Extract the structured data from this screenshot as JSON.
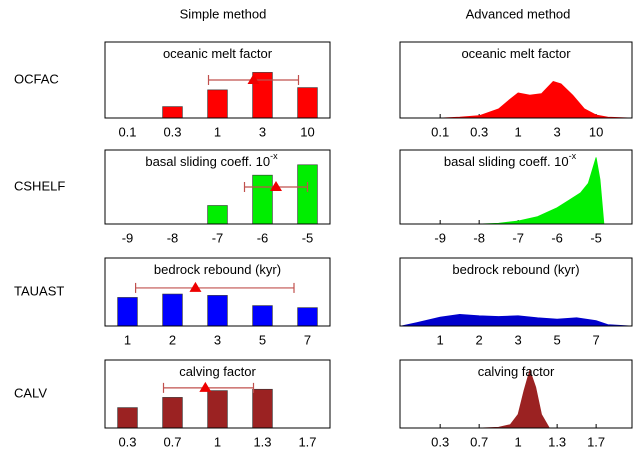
{
  "column_titles": [
    "Simple method",
    "Advanced method"
  ],
  "row_labels": [
    "OCFAC",
    "CSHELF",
    "TAUAST",
    "CALV"
  ],
  "chart_data": [
    {
      "type": "bar",
      "title": "oceanic melt factor",
      "categories": [
        "0.1",
        "0.3",
        "1",
        "3",
        "10"
      ],
      "values": [
        0,
        0.15,
        0.37,
        0.6,
        0.4
      ],
      "color": "#ff0000",
      "ylim": [
        0,
        1
      ],
      "errorbar": {
        "x": 2.8,
        "low": 1.8,
        "high": 3.8,
        "y": 0.5
      }
    },
    {
      "type": "area",
      "title": "oceanic melt factor",
      "xlim": [
        -1.03,
        4.92
      ],
      "ylim": [
        0,
        1
      ],
      "color": "#ff0000",
      "xticks": [
        {
          "value": 0,
          "label": "0.1"
        },
        {
          "value": 1,
          "label": "0.3"
        },
        {
          "value": 2,
          "label": "1"
        },
        {
          "value": 3,
          "label": "3"
        },
        {
          "value": 4,
          "label": "10"
        }
      ],
      "x": [
        -1,
        0,
        0.5,
        1,
        1.5,
        1.8,
        2,
        2.3,
        2.6,
        2.9,
        3.1,
        3.4,
        3.7,
        4,
        4.3,
        4.9
      ],
      "values": [
        0,
        0,
        0.01,
        0.03,
        0.12,
        0.25,
        0.33,
        0.3,
        0.32,
        0.48,
        0.45,
        0.3,
        0.12,
        0.04,
        0.01,
        0
      ]
    },
    {
      "type": "bar",
      "title": "basal sliding coeff. 10",
      "title_sup": "-x",
      "categories": [
        "-9",
        "-8",
        "-7",
        "-6",
        "-5"
      ],
      "values": [
        0,
        0,
        0.25,
        0.66,
        0.8
      ],
      "color": "#00ee00",
      "ylim": [
        0,
        1
      ],
      "errorbar": {
        "x": 3.3,
        "low": 2.6,
        "high": 4.0,
        "y": 0.5
      }
    },
    {
      "type": "area",
      "title": "basal sliding coeff. 10",
      "title_sup": "-x",
      "xlim": [
        -1.03,
        4.92
      ],
      "ylim": [
        0,
        1
      ],
      "color": "#00ee00",
      "xticks": [
        {
          "value": 0,
          "label": "-9"
        },
        {
          "value": 1,
          "label": "-8"
        },
        {
          "value": 2,
          "label": "-7"
        },
        {
          "value": 3,
          "label": "-6"
        },
        {
          "value": 4,
          "label": "-5"
        }
      ],
      "x": [
        -1,
        0,
        1,
        1.5,
        2,
        2.5,
        3,
        3.3,
        3.6,
        3.8,
        4,
        4.1,
        4.2,
        4.9
      ],
      "values": [
        0,
        0,
        0,
        0.01,
        0.04,
        0.1,
        0.22,
        0.32,
        0.42,
        0.55,
        0.9,
        0.6,
        0,
        0
      ]
    },
    {
      "type": "bar",
      "title": "bedrock rebound (kyr)",
      "categories": [
        "1",
        "2",
        "3",
        "5",
        "7"
      ],
      "values": [
        0.42,
        0.47,
        0.45,
        0.3,
        0.27
      ],
      "color": "#0000ff",
      "ylim": [
        0,
        1
      ],
      "errorbar": {
        "x": 1.51,
        "low": 0.18,
        "high": 3.7,
        "y": 0.56
      }
    },
    {
      "type": "area",
      "title": "bedrock rebound (kyr)",
      "xlim": [
        -1.03,
        4.92
      ],
      "ylim": [
        0,
        1
      ],
      "color": "#0000cc",
      "xticks": [
        {
          "value": 0,
          "label": "1"
        },
        {
          "value": 1,
          "label": "2"
        },
        {
          "value": 2,
          "label": "3"
        },
        {
          "value": 3,
          "label": "5"
        },
        {
          "value": 4,
          "label": "7"
        }
      ],
      "x": [
        -1,
        -0.6,
        0,
        0.5,
        1,
        1.5,
        2,
        2.5,
        3,
        3.5,
        4,
        4.3,
        4.9
      ],
      "values": [
        0,
        0.05,
        0.13,
        0.17,
        0.15,
        0.14,
        0.15,
        0.12,
        0.1,
        0.12,
        0.08,
        0.02,
        0
      ]
    },
    {
      "type": "bar",
      "title": "calving factor",
      "categories": [
        "0.3",
        "0.7",
        "1",
        "1.3",
        "1.7"
      ],
      "values": [
        0.3,
        0.45,
        0.55,
        0.57,
        0
      ],
      "color": "#9b2222",
      "ylim": [
        0,
        1
      ],
      "errorbar": {
        "x": 1.73,
        "low": 0.8,
        "high": 2.8,
        "y": 0.59
      }
    },
    {
      "type": "area",
      "title": "calving factor",
      "xlim": [
        -1.03,
        4.92
      ],
      "ylim": [
        0,
        1
      ],
      "color": "#9b2222",
      "xticks": [
        {
          "value": 0,
          "label": "0.3"
        },
        {
          "value": 1,
          "label": "0.7"
        },
        {
          "value": 2,
          "label": "1"
        },
        {
          "value": 3,
          "label": "1.3"
        },
        {
          "value": 4,
          "label": "1.7"
        }
      ],
      "x": [
        -1,
        1,
        1.5,
        1.8,
        2,
        2.15,
        2.3,
        2.45,
        2.6,
        2.8,
        4.9
      ],
      "values": [
        0,
        0,
        0.01,
        0.05,
        0.2,
        0.55,
        0.85,
        0.6,
        0.2,
        0,
        0
      ]
    }
  ]
}
